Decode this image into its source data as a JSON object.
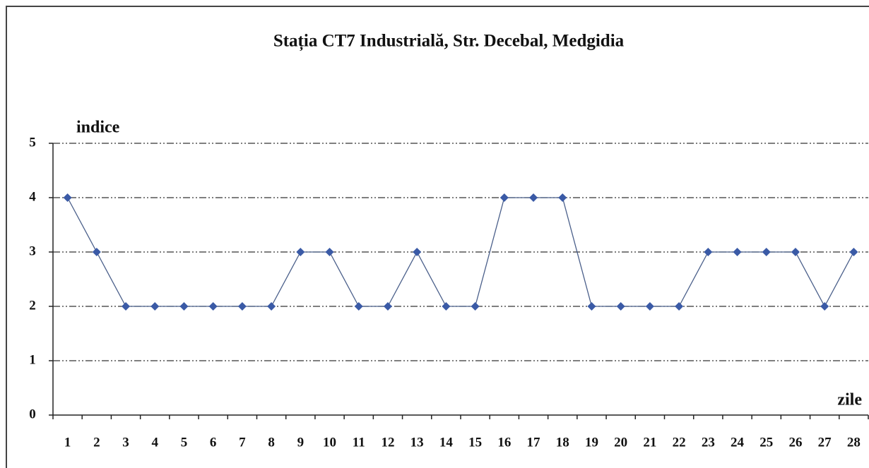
{
  "chart_data": {
    "type": "line",
    "title": "Stația CT7 Industrială, Str. Decebal, Medgidia",
    "y_label": "indice",
    "x_label": "zile",
    "categories": [
      "1",
      "2",
      "3",
      "4",
      "5",
      "6",
      "7",
      "8",
      "9",
      "10",
      "11",
      "12",
      "13",
      "14",
      "15",
      "16",
      "17",
      "18",
      "19",
      "20",
      "21",
      "22",
      "23",
      "24",
      "25",
      "26",
      "27",
      "28"
    ],
    "values": [
      4,
      3,
      2,
      2,
      2,
      2,
      2,
      2,
      3,
      3,
      2,
      2,
      3,
      2,
      2,
      4,
      4,
      4,
      2,
      2,
      2,
      2,
      3,
      3,
      3,
      3,
      2,
      3
    ],
    "color": "#3a5aa6",
    "ylim": [
      0,
      5
    ],
    "yticks": [
      0,
      1,
      2,
      3,
      4,
      5
    ],
    "grid": true
  }
}
